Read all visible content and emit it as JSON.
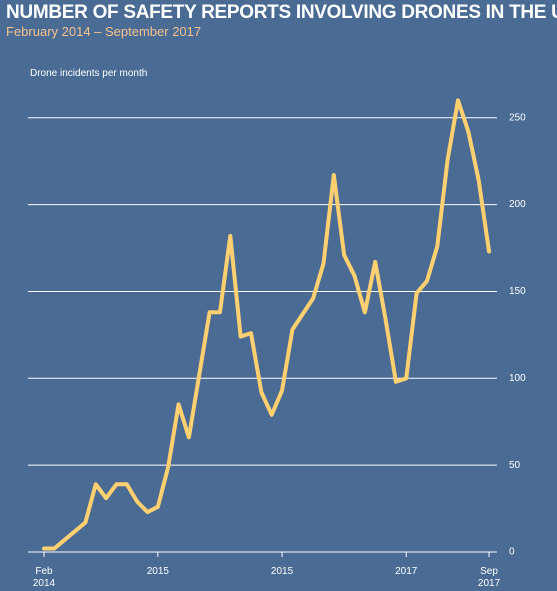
{
  "chart_data": {
    "type": "line",
    "title": "NUMBER OF SAFETY REPORTS INVOLVING DRONES IN THE US",
    "subtitle": "February 2014 – September 2017",
    "y_axis_label": "Drone incidents per month",
    "categories": [
      "Feb 2014",
      null,
      null,
      null,
      null,
      null,
      null,
      null,
      null,
      null,
      null,
      "2015",
      null,
      null,
      null,
      null,
      null,
      null,
      null,
      null,
      null,
      null,
      null,
      "2015",
      null,
      null,
      null,
      null,
      null,
      null,
      null,
      null,
      null,
      null,
      null,
      "2017",
      null,
      null,
      null,
      null,
      null,
      null,
      null,
      "Sep 2017"
    ],
    "series": [
      {
        "name": "Drone incidents",
        "color": "#ffd070",
        "values": [
          2,
          2,
          7,
          12,
          17,
          39,
          31,
          39,
          39,
          29,
          23,
          26,
          49,
          85,
          66,
          102,
          138,
          138,
          182,
          124,
          126,
          92,
          79,
          93,
          128,
          137,
          146,
          166,
          217,
          171,
          159,
          138,
          167,
          134,
          98,
          100,
          149,
          156,
          176,
          226,
          260,
          242,
          214,
          173
        ]
      }
    ],
    "ylim": [
      0,
      270
    ],
    "yticks": [
      0,
      50,
      100,
      150,
      200,
      250
    ],
    "grid": true
  }
}
